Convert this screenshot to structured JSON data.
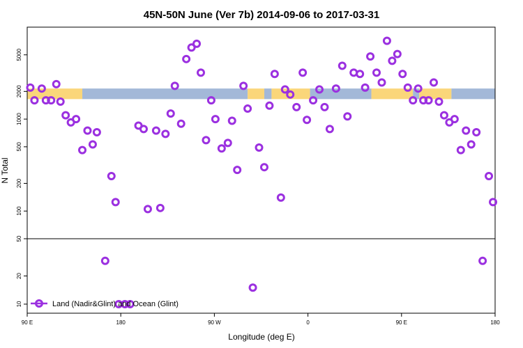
{
  "chart_data": {
    "type": "scatter",
    "title": "45N-50N June (Ver 7b)   2014-09-06 to 2017-03-31",
    "xlabel": "Longitude (deg E)",
    "ylabel": "N Total",
    "y_scale": "log",
    "grid": false,
    "x_ticks": [
      {
        "value": 90,
        "label": "90 E"
      },
      {
        "value": 180,
        "label": "180"
      },
      {
        "value": 270,
        "label": "90 W"
      },
      {
        "value": 360,
        "label": "0"
      },
      {
        "value": 450,
        "label": "90 E"
      },
      {
        "value": 540,
        "label": "180"
      }
    ],
    "xlim": [
      90,
      540
    ],
    "upper_panel": {
      "ylim": [
        50,
        10000
      ],
      "y_ticks": [
        {
          "value": 100,
          "label": "100"
        },
        {
          "value": 200,
          "label": "200"
        },
        {
          "value": 500,
          "label": "500"
        },
        {
          "value": 1000,
          "label": "1000"
        },
        {
          "value": 2000,
          "label": "2000"
        },
        {
          "value": 5000,
          "label": "5000"
        }
      ]
    },
    "lower_panel": {
      "ylim": [
        8,
        50
      ],
      "y_ticks": [
        {
          "value": 10,
          "label": "10"
        },
        {
          "value": 20,
          "label": "20"
        },
        {
          "value": 50,
          "label": "50"
        }
      ]
    },
    "land_ocean_band": {
      "y_range": [
        1650,
        2150
      ],
      "land_color": "#fad67a",
      "ocean_color": "#a3b8d8",
      "segments": [
        {
          "type": "land",
          "x": [
            90,
            143
          ]
        },
        {
          "type": "ocean",
          "x": [
            143,
            302
          ]
        },
        {
          "type": "land",
          "x": [
            302,
            318
          ]
        },
        {
          "type": "ocean",
          "x": [
            318,
            325
          ]
        },
        {
          "type": "land",
          "x": [
            325,
            362
          ]
        },
        {
          "type": "ocean",
          "x": [
            362,
            421
          ]
        },
        {
          "type": "land",
          "x": [
            421,
            461
          ]
        },
        {
          "type": "ocean",
          "x": [
            461,
            467
          ]
        },
        {
          "type": "land",
          "x": [
            467,
            498
          ]
        },
        {
          "type": "ocean",
          "x": [
            498,
            540
          ]
        }
      ]
    },
    "series": [
      {
        "name": "Land (Nadir&Glint) and Ocean (Glint)",
        "color": "#9b30e0",
        "marker": "open-circle",
        "points": [
          [
            93,
            2200
          ],
          [
            97,
            1600
          ],
          [
            104,
            2150
          ],
          [
            108,
            1600
          ],
          [
            113,
            1600
          ],
          [
            118,
            2400
          ],
          [
            122,
            1550
          ],
          [
            127,
            1100
          ],
          [
            132,
            920
          ],
          [
            137,
            1000
          ],
          [
            143,
            460
          ],
          [
            148,
            750
          ],
          [
            153,
            530
          ],
          [
            157,
            720
          ],
          [
            165,
            29
          ],
          [
            171,
            240
          ],
          [
            175,
            125
          ],
          [
            178,
            10
          ],
          [
            184,
            10
          ],
          [
            189,
            10
          ],
          [
            197,
            850
          ],
          [
            202,
            780
          ],
          [
            206,
            105
          ],
          [
            214,
            750
          ],
          [
            218,
            108
          ],
          [
            223,
            690
          ],
          [
            228,
            1150
          ],
          [
            232,
            2300
          ],
          [
            238,
            890
          ],
          [
            243,
            4500
          ],
          [
            248,
            6000
          ],
          [
            253,
            6600
          ],
          [
            257,
            3200
          ],
          [
            262,
            590
          ],
          [
            267,
            1600
          ],
          [
            271,
            1000
          ],
          [
            277,
            480
          ],
          [
            283,
            550
          ],
          [
            287,
            960
          ],
          [
            292,
            280
          ],
          [
            298,
            2300
          ],
          [
            302,
            1300
          ],
          [
            307,
            15
          ],
          [
            313,
            490
          ],
          [
            318,
            300
          ],
          [
            323,
            1400
          ],
          [
            328,
            3100
          ],
          [
            334,
            140
          ],
          [
            338,
            2100
          ],
          [
            343,
            1850
          ],
          [
            349,
            1350
          ],
          [
            355,
            3200
          ],
          [
            359,
            980
          ],
          [
            365,
            1600
          ],
          [
            371,
            2100
          ],
          [
            376,
            1350
          ],
          [
            381,
            780
          ],
          [
            387,
            2150
          ],
          [
            393,
            3800
          ],
          [
            398,
            1070
          ],
          [
            404,
            3200
          ],
          [
            410,
            3100
          ],
          [
            415,
            2200
          ],
          [
            420,
            4800
          ],
          [
            426,
            3200
          ],
          [
            431,
            2500
          ],
          [
            436,
            7100
          ],
          [
            441,
            4300
          ],
          [
            446,
            5100
          ],
          [
            451,
            3100
          ],
          [
            456,
            2200
          ],
          [
            461,
            1600
          ],
          [
            466,
            2150
          ],
          [
            471,
            1600
          ],
          [
            476,
            1600
          ],
          [
            481,
            2500
          ],
          [
            486,
            1550
          ],
          [
            491,
            1100
          ],
          [
            496,
            920
          ],
          [
            501,
            1000
          ],
          [
            507,
            460
          ],
          [
            512,
            750
          ],
          [
            517,
            530
          ],
          [
            522,
            720
          ],
          [
            528,
            29
          ],
          [
            534,
            240
          ],
          [
            538,
            125
          ]
        ]
      }
    ],
    "legend": {
      "position": "bottom-left",
      "label": "Land (Nadir&Glint) and Ocean (Glint)"
    }
  }
}
